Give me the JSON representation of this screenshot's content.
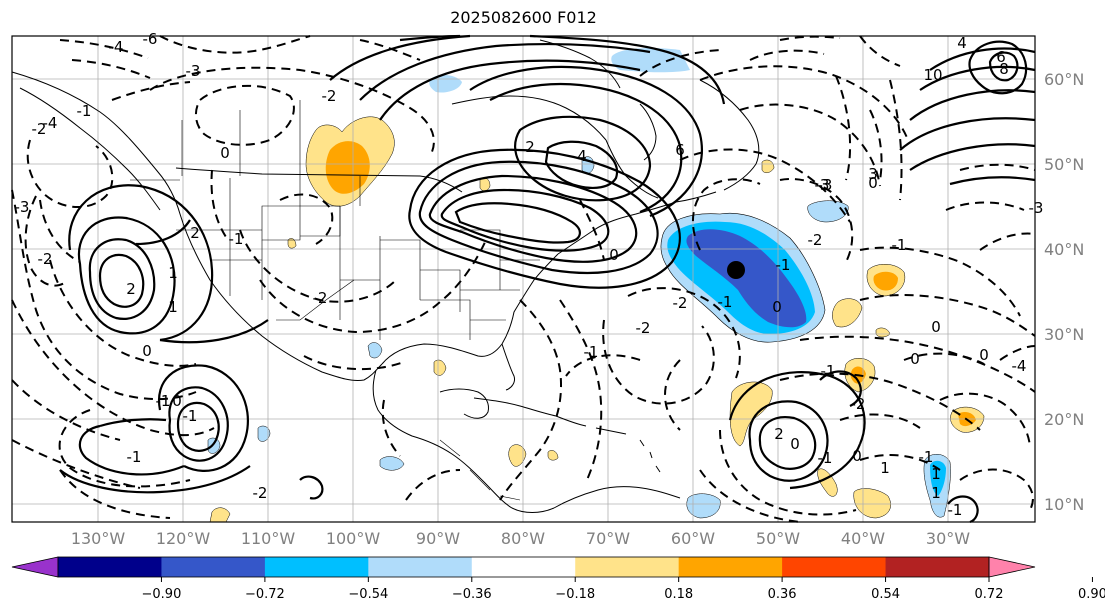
{
  "title": "2025082600 F012",
  "map": {
    "lat_labels": [
      "60°N",
      "50°N",
      "40°N",
      "30°N",
      "20°N",
      "10°N"
    ],
    "lon_labels": [
      "130°W",
      "120°W",
      "110°W",
      "100°W",
      "90°W",
      "80°W",
      "70°W",
      "60°W",
      "50°W",
      "40°W",
      "30°W"
    ],
    "gridlines": true,
    "marker": "black dot",
    "contour_labels": [
      "-6",
      "-4",
      "-3",
      "-4",
      "-3",
      "-2",
      "4",
      "6",
      "8",
      "10",
      "-1",
      "-2",
      "-2",
      "0",
      "2",
      "4",
      "6",
      "3",
      "-3",
      "0",
      "-1",
      "-2",
      "2",
      "-1",
      "-2",
      "-2",
      "-1",
      "-3",
      "-1",
      "0",
      "-1",
      "0",
      "0",
      "1",
      "2",
      "0",
      "-1",
      "1",
      "0",
      "-1",
      "-2",
      "-1",
      "0",
      "-1",
      "1",
      "0",
      "2",
      "1",
      "1",
      "-1",
      "-4",
      "-3",
      "-2",
      "0",
      "0",
      "-1",
      "-2",
      "-1"
    ]
  },
  "colorbar": {
    "ticks": [
      "−0.90",
      "−0.72",
      "−0.54",
      "−0.36",
      "−0.18",
      "0.18",
      "0.36",
      "0.54",
      "0.72",
      "0.90"
    ],
    "colors": [
      "#9932cc",
      "#00008b",
      "#3557c9",
      "#00bfff",
      "#b0dcfa",
      "#ffffff",
      "#ffe38a",
      "#ffa500",
      "#ff4500",
      "#b22222",
      "#ff82ab"
    ]
  }
}
